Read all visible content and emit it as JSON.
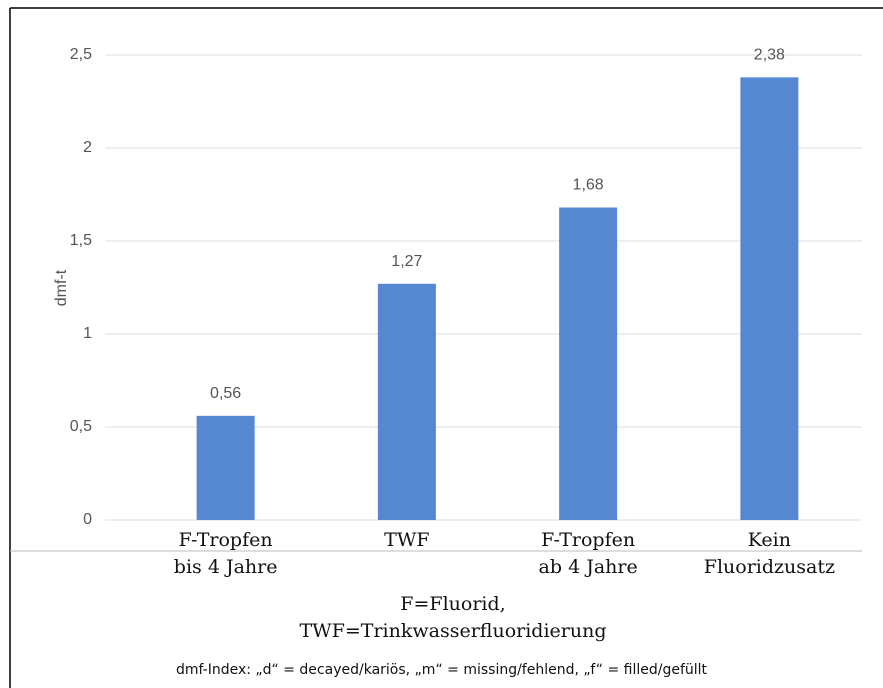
{
  "chart_data": {
    "type": "bar",
    "y_label": "dmf-t",
    "x_label": "F=Fluorid,\nTWF=Trinkwasserfluoridierung",
    "note": "dmf-Index: „d“ = decayed/kariös, „m“ = missing/fehlend, „f“ = filled/gefüllt",
    "categories": [
      "F-Tropfen\nbis 4 Jahre",
      "TWF",
      "F-Tropfen\nab 4 Jahre",
      "Kein\nFluoridzusatz"
    ],
    "values": [
      0.56,
      1.27,
      1.68,
      2.38
    ],
    "value_labels": [
      "0,56",
      "1,27",
      "1,68",
      "2,38"
    ],
    "color": "#5588d0",
    "ylim": [
      0,
      2.5
    ],
    "yticks": [
      0,
      {
        "value": 0.5,
        "label": "0,5"
      },
      1,
      {
        "value": 1.5,
        "label": "1,5"
      },
      2,
      {
        "value": 2.5,
        "label": "2,5"
      }
    ],
    "grid": true
  }
}
